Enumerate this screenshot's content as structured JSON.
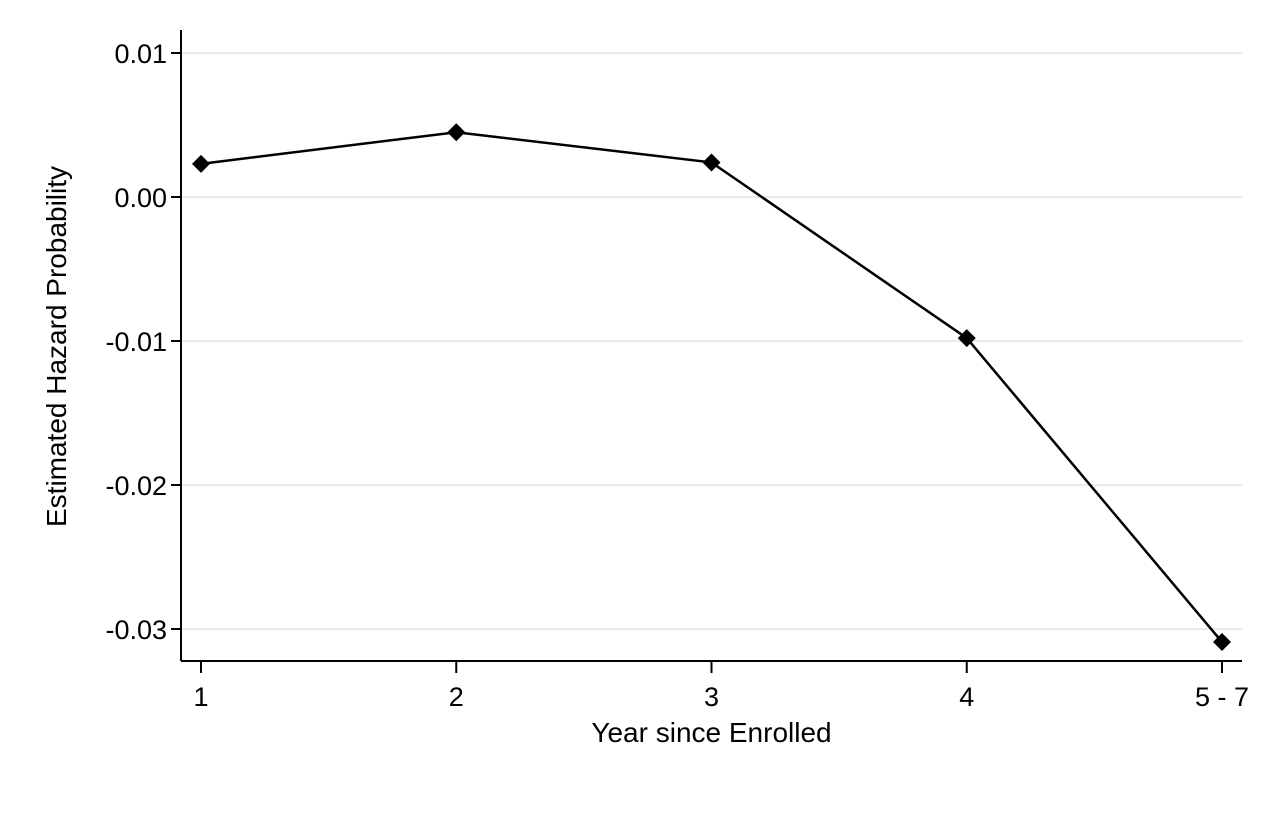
{
  "chart_data": {
    "type": "line",
    "xlabel": "Year since Enrolled",
    "ylabel": "Estimated Hazard Probability",
    "categories": [
      "1",
      "2",
      "3",
      "4",
      "5 - 7"
    ],
    "series": [
      {
        "values": [
          0.0023,
          0.0045,
          0.0024,
          -0.0098,
          -0.0309
        ]
      }
    ],
    "ylim": [
      -0.0323,
      0.0112
    ],
    "yticks": [
      0.01,
      0.0,
      -0.01,
      -0.02,
      -0.03
    ],
    "ytick_labels": [
      "0.01",
      "0.00",
      "-0.01",
      "-0.02",
      "-0.03"
    ],
    "grid": "horizontal",
    "marker": "diamond",
    "colors": {
      "line": "#000000",
      "grid": "#e5ebee",
      "background": "#ffffff"
    }
  }
}
